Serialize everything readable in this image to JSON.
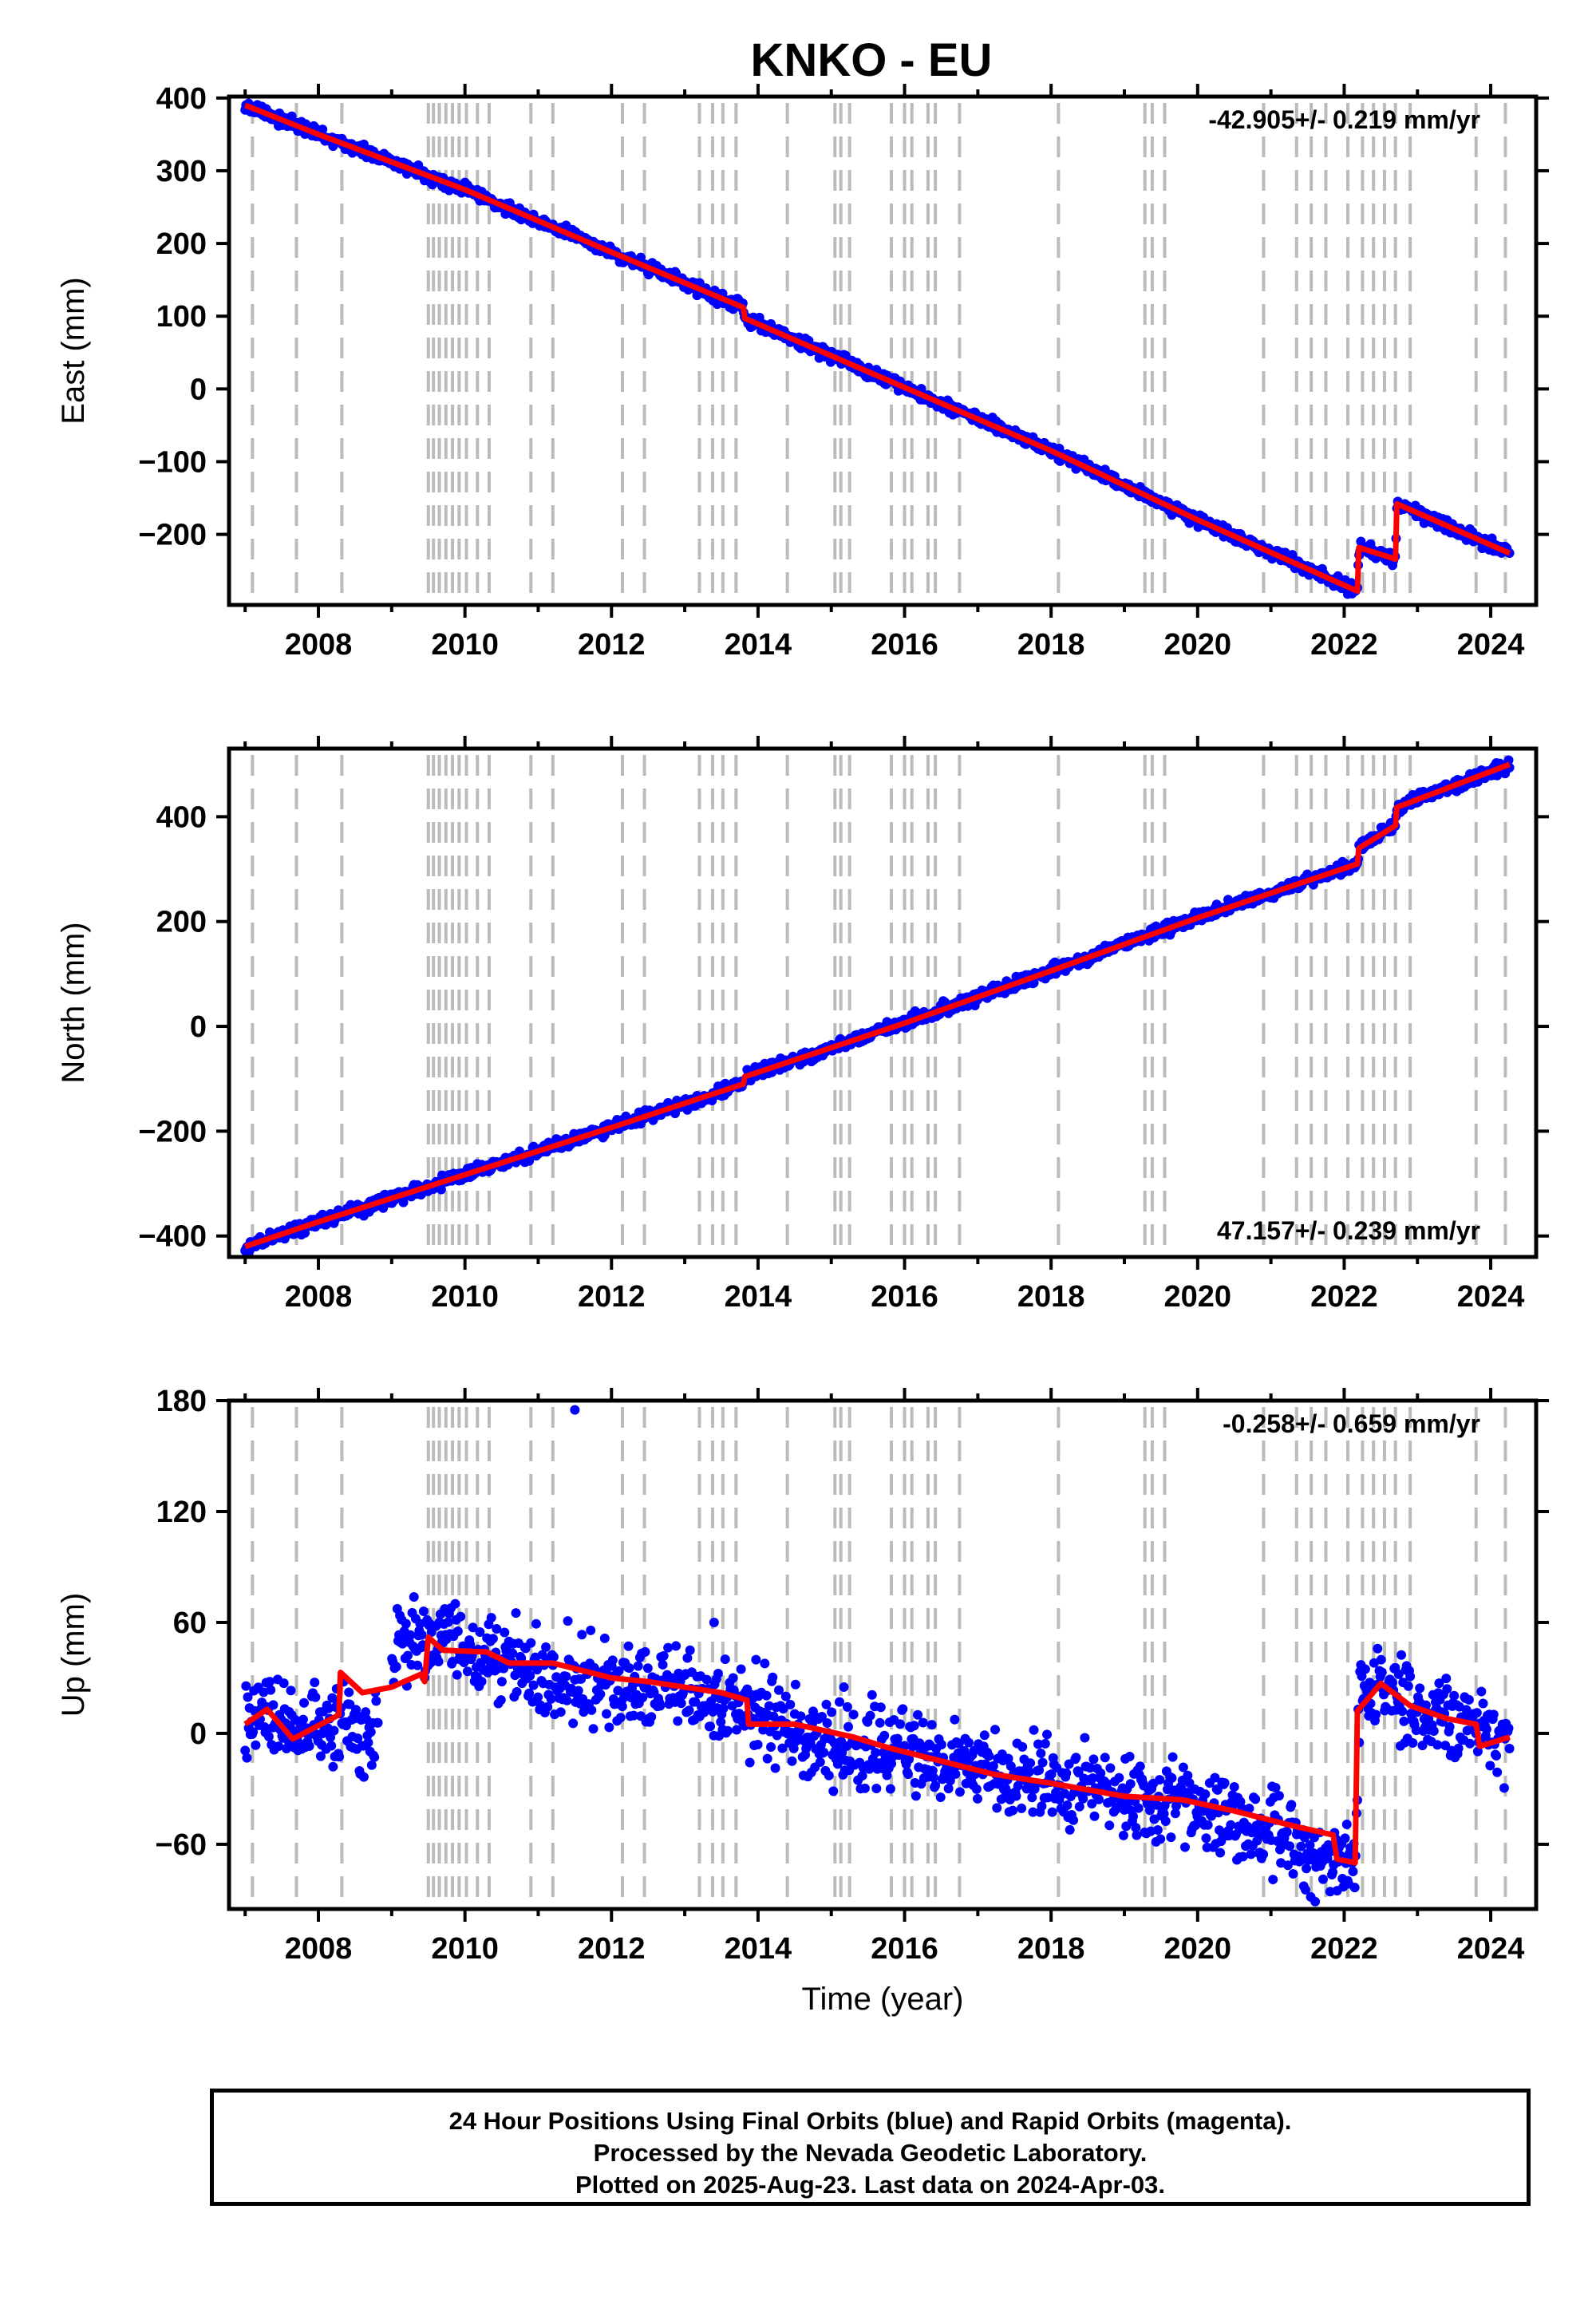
{
  "page": {
    "title": "KNKO - EU",
    "xlabel": "Time (year)",
    "footer": [
      "24 Hour Positions Using Final Orbits (blue) and Rapid Orbits (magenta).",
      "Processed by the Nevada Geodetic Laboratory.",
      "Plotted on 2025-Aug-23. Last data on 2024-Apr-03."
    ]
  },
  "colors": {
    "points": "#0000ff",
    "model": "#ff0000",
    "events": "#bbbbbb",
    "axes": "#000000"
  },
  "chart_data": [
    {
      "type": "scatter",
      "title": "KNKO - EU",
      "ylabel": "East (mm)",
      "rate_label": "-42.905+/- 0.219 mm/yr",
      "xlim": [
        2006.78,
        2024.62
      ],
      "ylim": [
        -297,
        402
      ],
      "yticks": [
        400,
        300,
        200,
        100,
        0,
        -100,
        -200
      ],
      "xticks": [
        2008,
        2010,
        2012,
        2014,
        2016,
        2018,
        2020,
        2022,
        2024
      ],
      "series": [
        {
          "values": [
            [
              2007.0,
              390
            ],
            [
              2008.0,
              350
            ],
            [
              2010.0,
              274
            ],
            [
              2012.0,
              188
            ],
            [
              2013.8,
              112
            ],
            [
              2013.82,
              97
            ],
            [
              2016.0,
              2
            ],
            [
              2018.0,
              -85
            ],
            [
              2020.0,
              -180
            ],
            [
              2022.18,
              -278
            ],
            [
              2022.2,
              -218
            ],
            [
              2022.7,
              -234
            ],
            [
              2022.72,
              -158
            ],
            [
              2024.26,
              -226
            ]
          ]
        }
      ]
    },
    {
      "type": "scatter",
      "ylabel": "North (mm)",
      "rate_label": "47.157+/- 0.239 mm/yr",
      "xlim": [
        2006.78,
        2024.62
      ],
      "ylim": [
        -440,
        530
      ],
      "yticks": [
        400,
        200,
        0,
        -200,
        -400
      ],
      "xticks": [
        2008,
        2010,
        2012,
        2014,
        2016,
        2018,
        2020,
        2022,
        2024
      ],
      "series": [
        {
          "values": [
            [
              2007.0,
              -420
            ],
            [
              2008.0,
              -373
            ],
            [
              2010.0,
              -283
            ],
            [
              2012.0,
              -193
            ],
            [
              2013.8,
              -110
            ],
            [
              2013.82,
              -96
            ],
            [
              2016.0,
              6
            ],
            [
              2018.0,
              106
            ],
            [
              2020.0,
              207
            ],
            [
              2022.18,
              310
            ],
            [
              2022.2,
              340
            ],
            [
              2022.7,
              383
            ],
            [
              2022.72,
              418
            ],
            [
              2024.26,
              500
            ]
          ]
        }
      ]
    },
    {
      "type": "scatter",
      "ylabel": "Up (mm)",
      "rate_label": "-0.258+/- 0.659 mm/yr",
      "xlim": [
        2006.78,
        2024.62
      ],
      "ylim": [
        -95,
        180
      ],
      "yticks": [
        180,
        120,
        60,
        0,
        -60
      ],
      "xticks": [
        2008,
        2010,
        2012,
        2014,
        2016,
        2018,
        2020,
        2022,
        2024
      ],
      "outliers": [
        [
          2011.5,
          175
        ],
        [
          2013.4,
          60
        ]
      ],
      "series": [
        {
          "values": [
            [
              2007.0,
              5
            ],
            [
              2007.3,
              15
            ],
            [
              2007.65,
              -3
            ],
            [
              2008.3,
              5
            ],
            [
              2008.8,
              -5
            ],
            [
              2009.0,
              45
            ],
            [
              2009.5,
              52
            ],
            [
              2010.0,
              45
            ],
            [
              2011.0,
              35
            ],
            [
              2012.0,
              28
            ],
            [
              2013.0,
              22
            ],
            [
              2014.0,
              10
            ],
            [
              2015.0,
              -2
            ],
            [
              2016.0,
              -10
            ],
            [
              2017.0,
              -20
            ],
            [
              2018.0,
              -28
            ],
            [
              2019.0,
              -32
            ],
            [
              2020.0,
              -42
            ],
            [
              2021.0,
              -50
            ],
            [
              2021.9,
              -70
            ],
            [
              2022.15,
              -72
            ],
            [
              2022.2,
              15
            ],
            [
              2022.5,
              25
            ],
            [
              2023.0,
              12
            ],
            [
              2024.0,
              0
            ],
            [
              2024.26,
              -3
            ]
          ]
        }
      ],
      "model": [
        [
          2007.0,
          5
        ],
        [
          2007.3,
          13
        ],
        [
          2007.65,
          -3
        ],
        [
          2008.28,
          10
        ],
        [
          2008.3,
          33
        ],
        [
          2008.6,
          22
        ],
        [
          2009.0,
          25
        ],
        [
          2009.4,
          32
        ],
        [
          2009.45,
          28
        ],
        [
          2009.5,
          52
        ],
        [
          2009.7,
          45
        ],
        [
          2010.3,
          44
        ],
        [
          2010.6,
          38
        ],
        [
          2011.2,
          38
        ],
        [
          2012.0,
          30
        ],
        [
          2012.5,
          28
        ],
        [
          2013.5,
          22
        ],
        [
          2013.85,
          18
        ],
        [
          2013.87,
          5
        ],
        [
          2014.5,
          5
        ],
        [
          2015.3,
          -2
        ],
        [
          2015.8,
          -8
        ],
        [
          2016.5,
          -15
        ],
        [
          2017.2,
          -22
        ],
        [
          2018.0,
          -27
        ],
        [
          2019.0,
          -34
        ],
        [
          2019.8,
          -36
        ],
        [
          2020.5,
          -42
        ],
        [
          2021.3,
          -50
        ],
        [
          2021.85,
          -55
        ],
        [
          2021.9,
          -68
        ],
        [
          2022.15,
          -70
        ],
        [
          2022.18,
          12
        ],
        [
          2022.5,
          27
        ],
        [
          2022.9,
          15
        ],
        [
          2023.4,
          8
        ],
        [
          2023.8,
          5
        ],
        [
          2023.85,
          -7
        ],
        [
          2024.26,
          -2
        ]
      ]
    }
  ],
  "events": [
    2007.1,
    2007.7,
    2008.32,
    2009.5,
    2009.57,
    2009.65,
    2009.74,
    2009.83,
    2009.92,
    2010.02,
    2010.17,
    2010.33,
    2010.9,
    2011.2,
    2012.15,
    2012.45,
    2013.2,
    2013.38,
    2013.52,
    2013.7,
    2014.4,
    2015.05,
    2015.13,
    2015.25,
    2015.82,
    2016.0,
    2016.1,
    2016.32,
    2016.42,
    2016.75,
    2018.1,
    2019.28,
    2019.38,
    2019.55,
    2020.9,
    2021.35,
    2021.55,
    2021.75,
    2022.05,
    2022.25,
    2022.4,
    2022.55,
    2022.7,
    2022.9,
    2023.8,
    2024.2
  ]
}
